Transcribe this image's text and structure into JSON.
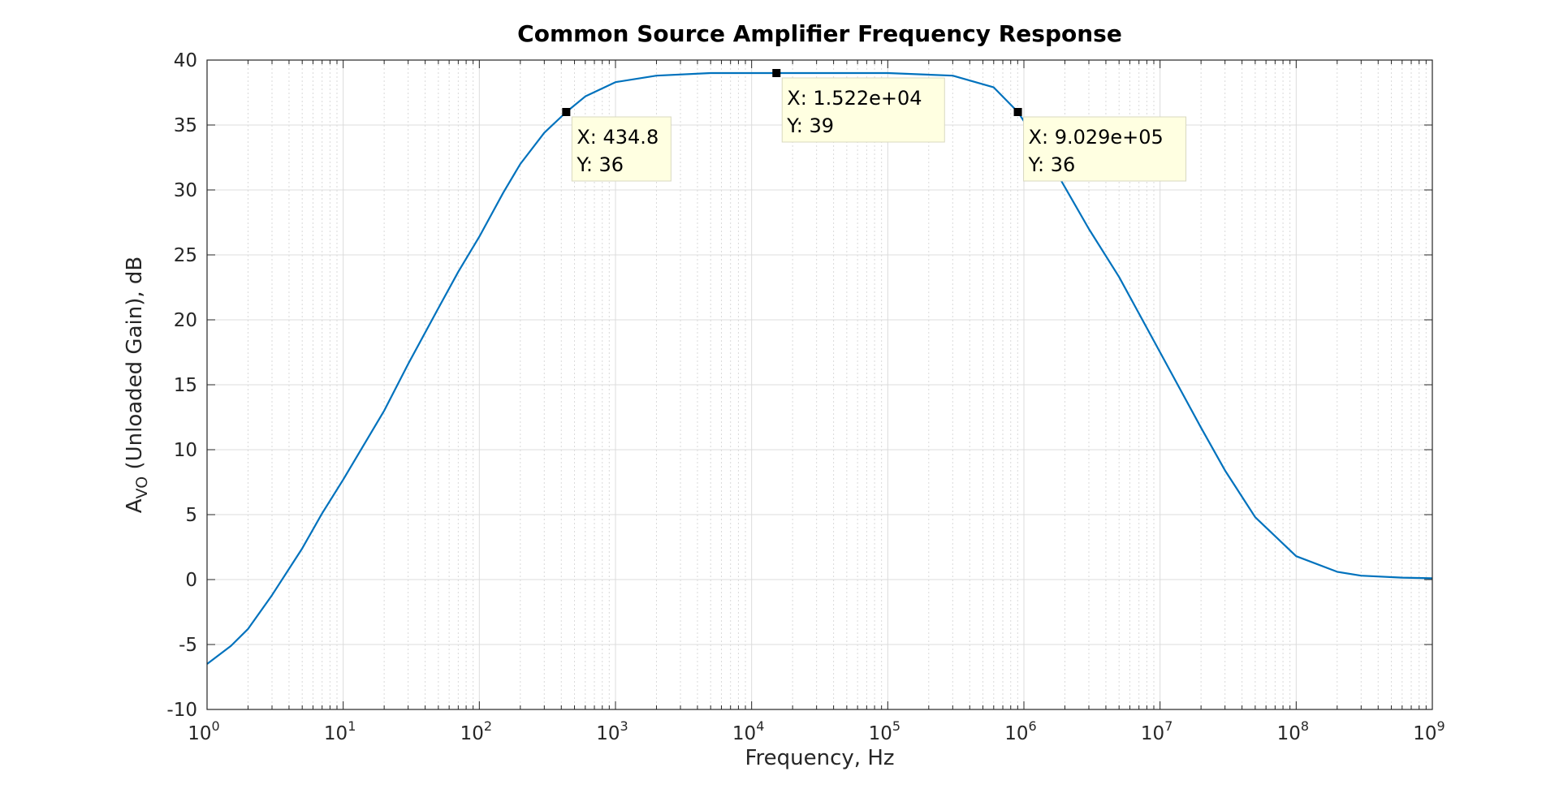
{
  "chart_data": {
    "type": "line",
    "title": "Common Source Amplifier Frequency Response",
    "xlabel": "Frequency, Hz",
    "ylabel_main": "A",
    "ylabel_sub": "VO",
    "ylabel_rest": " (Unloaded Gain), dB",
    "xscale": "log",
    "xlim": [
      1,
      1000000000
    ],
    "ylim": [
      -10,
      40
    ],
    "grid": true,
    "minor_grid": true,
    "x_ticks": [
      {
        "base": "10",
        "exp": "0"
      },
      {
        "base": "10",
        "exp": "1"
      },
      {
        "base": "10",
        "exp": "2"
      },
      {
        "base": "10",
        "exp": "3"
      },
      {
        "base": "10",
        "exp": "4"
      },
      {
        "base": "10",
        "exp": "5"
      },
      {
        "base": "10",
        "exp": "6"
      },
      {
        "base": "10",
        "exp": "7"
      },
      {
        "base": "10",
        "exp": "8"
      },
      {
        "base": "10",
        "exp": "9"
      }
    ],
    "y_ticks": [
      "-10",
      "-5",
      "0",
      "5",
      "10",
      "15",
      "20",
      "25",
      "30",
      "35",
      "40"
    ],
    "series": [
      {
        "color": "#0072BD",
        "x": [
          1,
          1.5,
          2,
          3,
          5,
          7,
          10,
          20,
          30,
          50,
          70,
          100,
          150,
          200,
          300,
          434.8,
          600,
          1000,
          2000,
          5000,
          10000,
          15220,
          30000,
          100000,
          300000,
          600000,
          902900,
          1500000,
          3000000,
          5000000,
          10000000,
          20000000,
          30000000,
          50000000,
          100000000,
          200000000,
          300000000,
          600000000,
          1000000000
        ],
        "y": [
          -6.5,
          -5.1,
          -3.8,
          -1.2,
          2.4,
          5.1,
          7.7,
          13.0,
          16.6,
          20.9,
          23.7,
          26.4,
          29.8,
          32.0,
          34.4,
          36.0,
          37.2,
          38.3,
          38.8,
          39.0,
          39.0,
          39.0,
          39.0,
          39.0,
          38.8,
          37.9,
          36.0,
          32.5,
          27.0,
          23.3,
          17.5,
          11.7,
          8.4,
          4.8,
          1.8,
          0.6,
          0.3,
          0.15,
          0.1
        ]
      }
    ],
    "datatips": [
      {
        "x": 434.8,
        "y": 36,
        "label_x": "X: 434.8",
        "label_y": "Y: 36"
      },
      {
        "x": 15220,
        "y": 39,
        "label_x": "X: 1.522e+04",
        "label_y": "Y: 39"
      },
      {
        "x": 902900,
        "y": 36,
        "label_x": "X: 9.029e+05",
        "label_y": "Y: 36"
      }
    ]
  }
}
